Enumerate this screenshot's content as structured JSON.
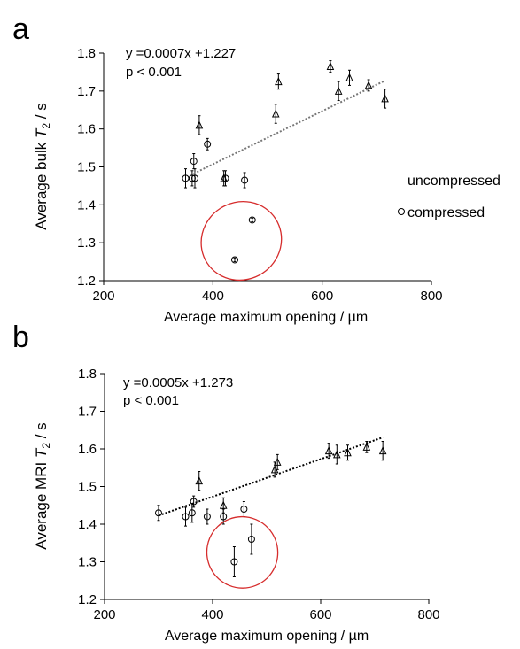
{
  "figure": {
    "legend": {
      "uncompressed_label": "uncompressed",
      "compressed_label": "compressed"
    }
  },
  "chart_data": [
    {
      "panel_label": "a",
      "type": "scatter",
      "xlabel": "Average maximum opening / µm",
      "ylabel_prefix": "Average bulk ",
      "ylabel_symbol": "T",
      "ylabel_subscript": "2",
      "ylabel_suffix": " / s",
      "xlim": [
        200,
        800
      ],
      "ylim": [
        1.2,
        1.8
      ],
      "x_ticks": [
        200,
        400,
        600,
        800
      ],
      "y_ticks": [
        "1.2",
        "1.3",
        "1.4",
        "1.5",
        "1.6",
        "1.7",
        "1.8"
      ],
      "equation": "y =0.0007x +1.227",
      "pvalue": "p < 0.001",
      "series": [
        {
          "name": "uncompressed",
          "marker": "triangle",
          "points": [
            {
              "x": 375,
              "y": 1.61,
              "err": 0.025
            },
            {
              "x": 420,
              "y": 1.47,
              "err": 0.02
            },
            {
              "x": 515,
              "y": 1.64,
              "err": 0.025
            },
            {
              "x": 520,
              "y": 1.725,
              "err": 0.02
            },
            {
              "x": 615,
              "y": 1.765,
              "err": 0.015
            },
            {
              "x": 630,
              "y": 1.7,
              "err": 0.025
            },
            {
              "x": 650,
              "y": 1.735,
              "err": 0.02
            },
            {
              "x": 685,
              "y": 1.715,
              "err": 0.015
            },
            {
              "x": 715,
              "y": 1.68,
              "err": 0.025
            }
          ]
        },
        {
          "name": "compressed",
          "marker": "circle",
          "points": [
            {
              "x": 350,
              "y": 1.47,
              "err": 0.025
            },
            {
              "x": 362,
              "y": 1.47,
              "err": 0.02
            },
            {
              "x": 365,
              "y": 1.515,
              "err": 0.02
            },
            {
              "x": 367,
              "y": 1.47,
              "err": 0.025
            },
            {
              "x": 390,
              "y": 1.56,
              "err": 0.015
            },
            {
              "x": 423,
              "y": 1.47,
              "err": 0.02
            },
            {
              "x": 440,
              "y": 1.255,
              "err": 0.005
            },
            {
              "x": 458,
              "y": 1.465,
              "err": 0.02
            },
            {
              "x": 472,
              "y": 1.36,
              "err": 0.005
            }
          ]
        }
      ],
      "trendline": {
        "x_start": 365,
        "x_end": 715,
        "slope": 0.0007,
        "intercept": 1.227
      },
      "highlight": {
        "cx": 452,
        "cy": 1.305,
        "rx": 46,
        "ry": 0.102,
        "rotate": -33
      }
    },
    {
      "panel_label": "b",
      "type": "scatter",
      "xlabel": "Average maximum opening / µm",
      "ylabel_prefix": "Average MRI ",
      "ylabel_symbol": "T",
      "ylabel_subscript": "2",
      "ylabel_suffix": " / s",
      "xlim": [
        200,
        800
      ],
      "ylim": [
        1.2,
        1.8
      ],
      "x_ticks": [
        200,
        400,
        600,
        800
      ],
      "y_ticks": [
        "1.2",
        "1.3",
        "1.4",
        "1.5",
        "1.6",
        "1.7",
        "1.8"
      ],
      "equation": "y =0.0005x +1.273",
      "pvalue": "p < 0.001",
      "series": [
        {
          "name": "uncompressed",
          "marker": "triangle",
          "points": [
            {
              "x": 375,
              "y": 1.515,
              "err": 0.025
            },
            {
              "x": 420,
              "y": 1.45,
              "err": 0.02
            },
            {
              "x": 515,
              "y": 1.545,
              "err": 0.02
            },
            {
              "x": 520,
              "y": 1.565,
              "err": 0.02
            },
            {
              "x": 615,
              "y": 1.595,
              "err": 0.02
            },
            {
              "x": 630,
              "y": 1.585,
              "err": 0.025
            },
            {
              "x": 650,
              "y": 1.59,
              "err": 0.02
            },
            {
              "x": 685,
              "y": 1.605,
              "err": 0.015
            },
            {
              "x": 715,
              "y": 1.595,
              "err": 0.025
            }
          ]
        },
        {
          "name": "compressed",
          "marker": "circle",
          "points": [
            {
              "x": 300,
              "y": 1.43,
              "err": 0.02
            },
            {
              "x": 350,
              "y": 1.42,
              "err": 0.025
            },
            {
              "x": 362,
              "y": 1.43,
              "err": 0.025
            },
            {
              "x": 365,
              "y": 1.46,
              "err": 0.015
            },
            {
              "x": 390,
              "y": 1.42,
              "err": 0.02
            },
            {
              "x": 420,
              "y": 1.42,
              "err": 0.02
            },
            {
              "x": 440,
              "y": 1.3,
              "err": 0.04
            },
            {
              "x": 458,
              "y": 1.44,
              "err": 0.02
            },
            {
              "x": 472,
              "y": 1.36,
              "err": 0.04
            }
          ]
        }
      ],
      "trendline": {
        "x_start": 300,
        "x_end": 715,
        "slope": 0.0005,
        "intercept": 1.273
      },
      "highlight": {
        "cx": 455,
        "cy": 1.325,
        "rx": 40,
        "ry": 0.095,
        "rotate": -22
      }
    }
  ]
}
